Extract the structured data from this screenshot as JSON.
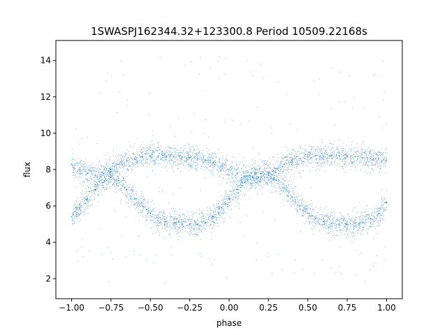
{
  "chart_data": {
    "type": "scatter",
    "title": "1SWASPJ162344.32+123300.8 Period 10509.22168s",
    "xlabel": "phase",
    "ylabel": "flux",
    "xlim": [
      -1.1,
      1.1
    ],
    "ylim": [
      0.9,
      15.1
    ],
    "x_ticks": [
      -1.0,
      -0.75,
      -0.5,
      -0.25,
      0.0,
      0.25,
      0.5,
      0.75,
      1.0
    ],
    "x_tick_labels": [
      "−1.00",
      "−0.75",
      "−0.50",
      "−0.25",
      "0.00",
      "0.25",
      "0.50",
      "0.75",
      "1.00"
    ],
    "y_ticks": [
      2,
      4,
      6,
      8,
      10,
      12,
      14
    ],
    "y_tick_labels": [
      "2",
      "4",
      "6",
      "8",
      "10",
      "12",
      "14"
    ],
    "grid": false,
    "marker_color": "#1f77b4",
    "series": [
      {
        "description_points": "upper sinusoidal band (folded light curve, two cycles per phase range)",
        "x": [
          -1.0,
          -0.95,
          -0.9,
          -0.85,
          -0.8,
          -0.75,
          -0.7,
          -0.65,
          -0.6,
          -0.55,
          -0.5,
          -0.45,
          -0.4,
          -0.35,
          -0.3,
          -0.25,
          -0.2,
          -0.15,
          -0.1,
          -0.05,
          0.0,
          0.05,
          0.1,
          0.15,
          0.2,
          0.25,
          0.3,
          0.35,
          0.4,
          0.45,
          0.5,
          0.55,
          0.6,
          0.65,
          0.7,
          0.75,
          0.8,
          0.85,
          0.9,
          0.95,
          1.0
        ],
        "y": [
          8.3,
          8.0,
          7.8,
          7.7,
          7.8,
          8.0,
          8.3,
          8.5,
          8.6,
          8.7,
          8.75,
          8.75,
          8.7,
          8.7,
          8.7,
          8.65,
          8.6,
          8.5,
          8.4,
          8.2,
          8.0,
          7.8,
          7.65,
          7.55,
          7.6,
          7.8,
          8.05,
          8.3,
          8.5,
          8.6,
          8.7,
          8.75,
          8.75,
          8.75,
          8.75,
          8.7,
          8.7,
          8.65,
          8.6,
          8.6,
          8.5
        ]
      },
      {
        "x": [
          -1.0,
          -0.95,
          -0.9,
          -0.85,
          -0.8,
          -0.75,
          -0.7,
          -0.65,
          -0.6,
          -0.55,
          -0.5,
          -0.45,
          -0.4,
          -0.35,
          -0.3,
          -0.25,
          -0.2,
          -0.15,
          -0.1,
          -0.05,
          0.0,
          0.05,
          0.1,
          0.15,
          0.2,
          0.25,
          0.3,
          0.35,
          0.4,
          0.45,
          0.5,
          0.55,
          0.6,
          0.65,
          0.7,
          0.75,
          0.8,
          0.85,
          0.9,
          0.95,
          1.0
        ],
        "y": [
          5.4,
          5.9,
          6.4,
          6.9,
          7.3,
          7.6,
          7.4,
          6.9,
          6.4,
          6.0,
          5.6,
          5.3,
          5.15,
          5.05,
          5.0,
          5.0,
          5.0,
          5.1,
          5.4,
          5.9,
          6.4,
          6.9,
          7.3,
          7.6,
          7.8,
          7.7,
          7.4,
          7.0,
          6.5,
          6.0,
          5.6,
          5.3,
          5.15,
          5.05,
          5.0,
          5.0,
          5.05,
          5.1,
          5.3,
          5.6,
          6.2
        ]
      }
    ]
  }
}
